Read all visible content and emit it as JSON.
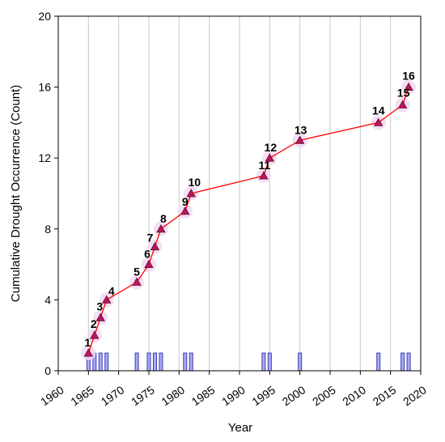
{
  "chart_data": {
    "type": "line",
    "xlabel": "Year",
    "ylabel": "Cumulative Drought Occurrence (Count)",
    "xlim": [
      1960,
      2020
    ],
    "ylim": [
      0,
      20
    ],
    "x_ticks": [
      1960,
      1965,
      1970,
      1975,
      1980,
      1985,
      1990,
      1995,
      2000,
      2005,
      2010,
      2015,
      2020
    ],
    "y_ticks": [
      0,
      4,
      8,
      12,
      16,
      20
    ],
    "grid": "vertical",
    "series": [
      {
        "type": "line",
        "x": [
          1965,
          1966,
          1967,
          1968,
          1973,
          1975,
          1976,
          1977,
          1981,
          1982,
          1994,
          1995,
          2000,
          2013,
          2017,
          2018
        ],
        "y": [
          1,
          2,
          3,
          4,
          5,
          6,
          7,
          8,
          9,
          10,
          11,
          12,
          13,
          14,
          15,
          16
        ],
        "labels": [
          "1",
          "2",
          "3",
          "4",
          "5",
          "6",
          "7",
          "8",
          "9",
          "10",
          "11",
          "12",
          "13",
          "14",
          "15",
          "16"
        ],
        "color": "#ff0000",
        "marker": "triangle",
        "marker_color": "#c0135a"
      },
      {
        "type": "bar",
        "x": [
          1965,
          1966,
          1967,
          1968,
          1973,
          1975,
          1976,
          1977,
          1981,
          1982,
          1994,
          1995,
          2000,
          2013,
          2017,
          2018
        ],
        "values": [
          1,
          1,
          1,
          1,
          1,
          1,
          1,
          1,
          1,
          1,
          1,
          1,
          1,
          1,
          1,
          1
        ],
        "fill": "#aaaaf0",
        "stroke": "#3c3cb4"
      }
    ],
    "colors": {
      "halo": "#f2d8f2",
      "axis": "#000000",
      "grid": "#c8c8c8"
    }
  }
}
